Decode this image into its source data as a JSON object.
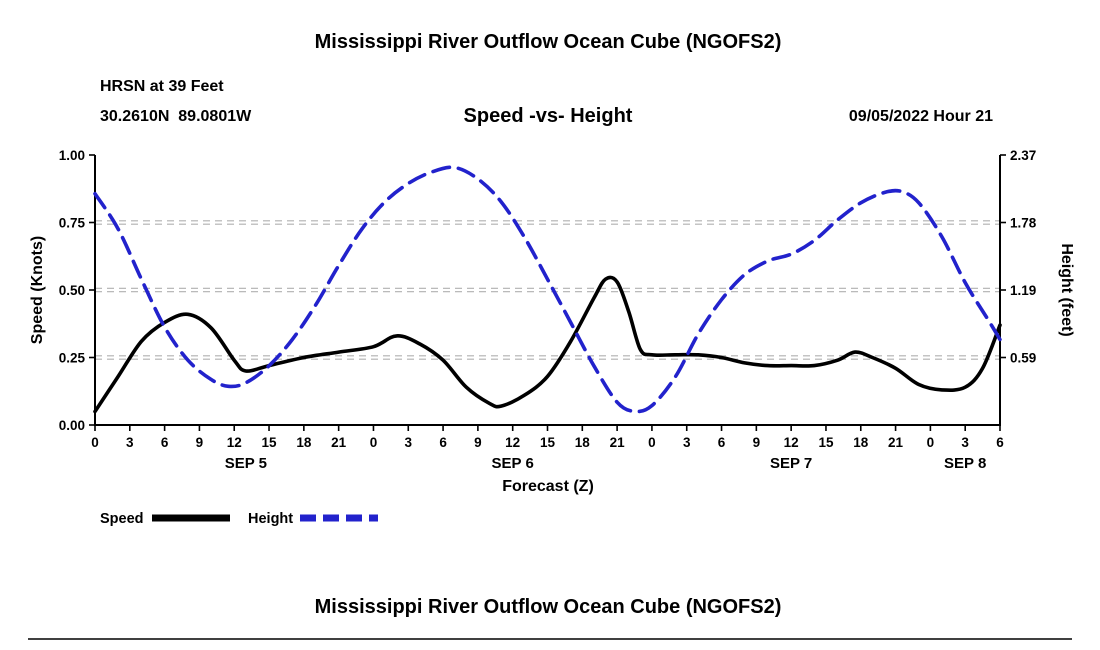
{
  "page": {
    "top_title": "Mississippi River Outflow Ocean Cube (NGOFS2)",
    "bottom_title": "Mississippi River Outflow Ocean Cube (NGOFS2)"
  },
  "header": {
    "station": "HRSN at 39 Feet",
    "coordinates": "30.2610N  89.0801W",
    "plot_title": "Speed -vs- Height",
    "datetime": "09/05/2022 Hour 21"
  },
  "axes": {
    "left_label": "Speed (Knots)",
    "right_label": "Height (feet)",
    "x_label": "Forecast (Z)",
    "left_ticks": [
      "1.00",
      "0.75",
      "0.50",
      "0.25",
      "0.00"
    ],
    "right_ticks": [
      "2.37",
      "1.78",
      "1.19",
      "0.59"
    ],
    "date_labels": [
      {
        "label": "SEP 5",
        "hour": 13
      },
      {
        "label": "SEP 6",
        "hour": 36
      },
      {
        "label": "SEP 7",
        "hour": 60
      },
      {
        "label": "SEP 8",
        "hour": 75
      }
    ]
  },
  "legend": {
    "speed_label": "Speed",
    "height_label": "Height"
  },
  "chart_data": {
    "type": "line",
    "title": "Speed -vs- Height",
    "xlabel": "Forecast (Z)",
    "ylabel_left": "Speed (Knots)",
    "ylabel_right": "Height (feet)",
    "x_unit": "hours from 2022-09-05 00Z",
    "x_range": [
      0,
      78
    ],
    "x_tick_step": 3,
    "left_ylim": [
      0,
      1.0
    ],
    "right_ylim": [
      0,
      2.37
    ],
    "gridlines_left": [
      0.25,
      0.5,
      0.75
    ],
    "grid_color": "#b0b0b0",
    "series": [
      {
        "name": "Speed",
        "axis": "left",
        "units": "knots",
        "color": "#000000",
        "style": "solid",
        "points": [
          [
            0,
            0.05
          ],
          [
            2,
            0.18
          ],
          [
            4,
            0.31
          ],
          [
            6,
            0.38
          ],
          [
            8,
            0.41
          ],
          [
            10,
            0.36
          ],
          [
            12,
            0.24
          ],
          [
            13,
            0.2
          ],
          [
            15,
            0.22
          ],
          [
            18,
            0.25
          ],
          [
            21,
            0.27
          ],
          [
            24,
            0.29
          ],
          [
            26,
            0.33
          ],
          [
            28,
            0.3
          ],
          [
            30,
            0.24
          ],
          [
            32,
            0.14
          ],
          [
            34,
            0.08
          ],
          [
            35,
            0.07
          ],
          [
            37,
            0.11
          ],
          [
            39,
            0.18
          ],
          [
            41,
            0.31
          ],
          [
            43,
            0.47
          ],
          [
            44,
            0.54
          ],
          [
            45,
            0.53
          ],
          [
            46,
            0.42
          ],
          [
            47,
            0.28
          ],
          [
            48,
            0.26
          ],
          [
            50,
            0.26
          ],
          [
            52,
            0.26
          ],
          [
            54,
            0.25
          ],
          [
            56,
            0.23
          ],
          [
            58,
            0.22
          ],
          [
            60,
            0.22
          ],
          [
            62,
            0.22
          ],
          [
            64,
            0.24
          ],
          [
            65.5,
            0.27
          ],
          [
            67,
            0.25
          ],
          [
            69,
            0.21
          ],
          [
            71,
            0.15
          ],
          [
            73,
            0.13
          ],
          [
            75,
            0.14
          ],
          [
            76.5,
            0.21
          ],
          [
            78,
            0.37
          ]
        ]
      },
      {
        "name": "Height",
        "axis": "right",
        "units": "feet",
        "color": "#2222cc",
        "style": "dashed",
        "points": [
          [
            0,
            2.03
          ],
          [
            2,
            1.72
          ],
          [
            4,
            1.28
          ],
          [
            6,
            0.86
          ],
          [
            8,
            0.57
          ],
          [
            10,
            0.4
          ],
          [
            11.5,
            0.34
          ],
          [
            13,
            0.37
          ],
          [
            15,
            0.52
          ],
          [
            17,
            0.75
          ],
          [
            19,
            1.05
          ],
          [
            21,
            1.4
          ],
          [
            23,
            1.72
          ],
          [
            25,
            1.96
          ],
          [
            27,
            2.12
          ],
          [
            29,
            2.22
          ],
          [
            31,
            2.26
          ],
          [
            33,
            2.16
          ],
          [
            35,
            1.96
          ],
          [
            37,
            1.65
          ],
          [
            39,
            1.28
          ],
          [
            41,
            0.9
          ],
          [
            43,
            0.52
          ],
          [
            45,
            0.2
          ],
          [
            46.5,
            0.12
          ],
          [
            48,
            0.17
          ],
          [
            50,
            0.42
          ],
          [
            52,
            0.8
          ],
          [
            54,
            1.1
          ],
          [
            56,
            1.32
          ],
          [
            58,
            1.44
          ],
          [
            60,
            1.5
          ],
          [
            62,
            1.62
          ],
          [
            64,
            1.8
          ],
          [
            66,
            1.95
          ],
          [
            68,
            2.04
          ],
          [
            69.5,
            2.05
          ],
          [
            71,
            1.95
          ],
          [
            73,
            1.65
          ],
          [
            75,
            1.25
          ],
          [
            77,
            0.92
          ],
          [
            78,
            0.75
          ]
        ]
      }
    ]
  }
}
